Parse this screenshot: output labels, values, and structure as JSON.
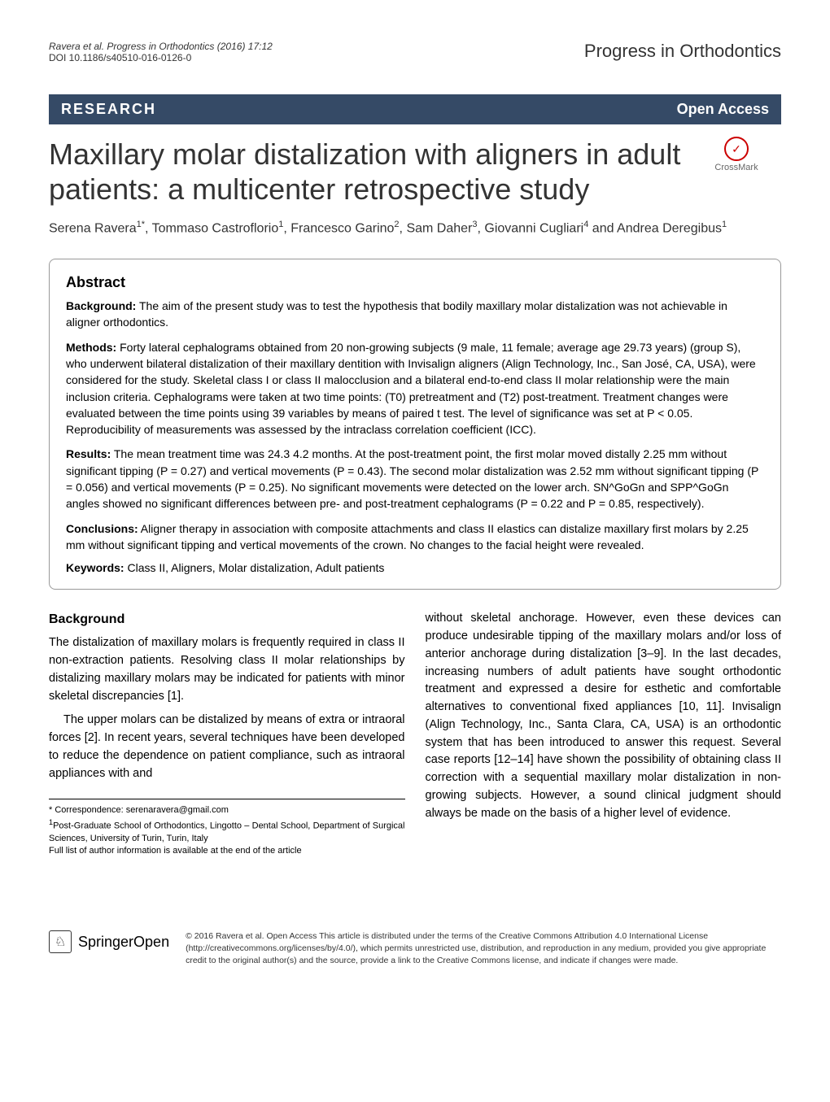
{
  "header": {
    "citation": "Ravera et al. Progress in Orthodontics  (2016) 17:12",
    "doi": "DOI 10.1186/s40510-016-0126-0",
    "journal": "Progress in Orthodontics"
  },
  "banner": {
    "left": "RESEARCH",
    "right": "Open Access"
  },
  "title": "Maxillary molar distalization with aligners in adult patients: a multicenter retrospective study",
  "crossmark_label": "CrossMark",
  "authors_html": "Serena Ravera<sup>1*</sup>, Tommaso Castroflorio<sup>1</sup>, Francesco Garino<sup>2</sup>, Sam Daher<sup>3</sup>, Giovanni Cugliari<sup>4</sup> and Andrea Deregibus<sup>1</sup>",
  "abstract": {
    "heading": "Abstract",
    "background_label": "Background:",
    "background": "The aim of the present study was to test the hypothesis that bodily maxillary molar distalization was not achievable in aligner orthodontics.",
    "methods_label": "Methods:",
    "methods": "Forty lateral cephalograms obtained from 20 non-growing subjects (9 male, 11 female; average age 29.73 years) (group S), who underwent bilateral distalization of their maxillary dentition with Invisalign aligners (Align Technology, Inc., San José, CA, USA), were considered for the study. Skeletal class I or class II malocclusion and a bilateral end-to-end class II molar relationship were the main inclusion criteria. Cephalograms were taken at two time points: (T0) pretreatment and (T2) post-treatment. Treatment changes were evaluated between the time points using 39 variables by means of paired t test. The level of significance was set at P < 0.05. Reproducibility of measurements was assessed by the intraclass correlation coefficient (ICC).",
    "results_label": "Results:",
    "results": "The mean treatment time was 24.3   4.2 months. At the post-treatment point, the first molar moved distally 2.25 mm without significant tipping (P = 0.27) and vertical movements (P = 0.43). The second molar distalization was 2.52 mm without significant tipping (P = 0.056) and vertical movements (P = 0.25). No significant movements were detected on the lower arch. SN^GoGn and SPP^GoGn angles showed no significant differences between pre- and post-treatment cephalograms (P = 0.22 and P = 0.85, respectively).",
    "conclusions_label": "Conclusions:",
    "conclusions": "Aligner therapy in association with composite attachments and class II elastics can distalize maxillary first molars by 2.25 mm without significant tipping and vertical movements of the crown. No changes to the facial height were revealed.",
    "keywords_label": "Keywords:",
    "keywords": "Class II, Aligners, Molar distalization, Adult patients"
  },
  "body": {
    "background_heading": "Background",
    "left_p1": "The distalization of maxillary molars is frequently required in class II non-extraction patients. Resolving class II molar relationships by distalizing maxillary molars may be indicated for patients with minor skeletal discrepancies [1].",
    "left_p2": "The upper molars can be distalized by means of extra or intraoral forces [2]. In recent years, several techniques have been developed to reduce the dependence on patient compliance, such as intraoral appliances with and",
    "right_p1": "without skeletal anchorage. However, even these devices can produce undesirable tipping of the maxillary molars and/or loss of anterior anchorage during distalization [3–9]. In the last decades, increasing numbers of adult patients have sought orthodontic treatment and expressed a desire for esthetic and comfortable alternatives to conventional fixed appliances [10, 11]. Invisalign (Align Technology, Inc., Santa Clara, CA, USA) is an orthodontic system that has been introduced to answer this request. Several case reports [12–14] have shown the possibility of obtaining class II correction with a sequential maxillary molar distalization in non-growing subjects. However, a sound clinical judgment should always be made on the basis of a higher level of evidence."
  },
  "correspondence": {
    "line1": "* Correspondence: serenaravera@gmail.com",
    "line2_html": "<sup>1</sup>Post-Graduate School of Orthodontics, Lingotto – Dental School, Department of Surgical Sciences, University of Turin, Turin, Italy",
    "line3": "Full list of author information is available at the end of the article"
  },
  "footer": {
    "springer": "Springer",
    "open": "Open",
    "license": "© 2016 Ravera et al. Open Access This article is distributed under the terms of the Creative Commons Attribution 4.0 International License (http://creativecommons.org/licenses/by/4.0/), which permits unrestricted use, distribution, and reproduction in any medium, provided you give appropriate credit to the original author(s) and the source, provide a link to the Creative Commons license, and indicate if changes were made."
  },
  "colors": {
    "banner_bg": "#354a66",
    "banner_text": "#ffffff",
    "text": "#333333",
    "border": "#999999"
  }
}
